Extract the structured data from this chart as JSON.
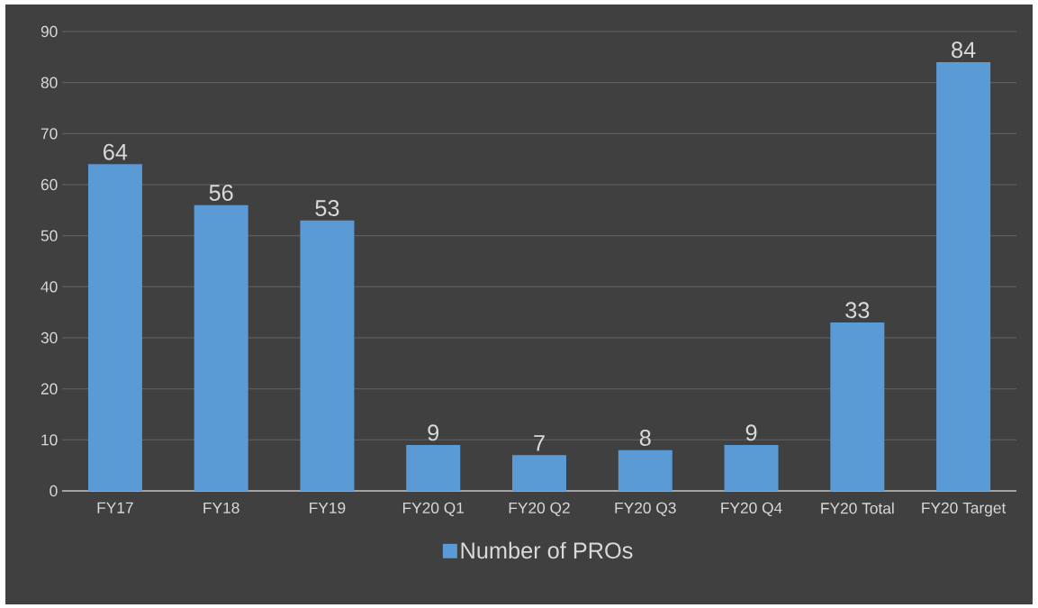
{
  "chart_data": {
    "type": "bar",
    "categories": [
      "FY17",
      "FY18",
      "FY19",
      "FY20 Q1",
      "FY20 Q2",
      "FY20 Q3",
      "FY20 Q4",
      "FY20 Total",
      "FY20 Target"
    ],
    "series": [
      {
        "name": "Number of PROs",
        "color": "#5b9bd5",
        "values": [
          64,
          56,
          53,
          9,
          7,
          8,
          9,
          33,
          84
        ]
      }
    ],
    "ylim": [
      0,
      90
    ],
    "yticks": [
      0,
      10,
      20,
      30,
      40,
      50,
      60,
      70,
      80,
      90
    ],
    "grid": "y",
    "legend": "bottom",
    "data_labels": true
  }
}
